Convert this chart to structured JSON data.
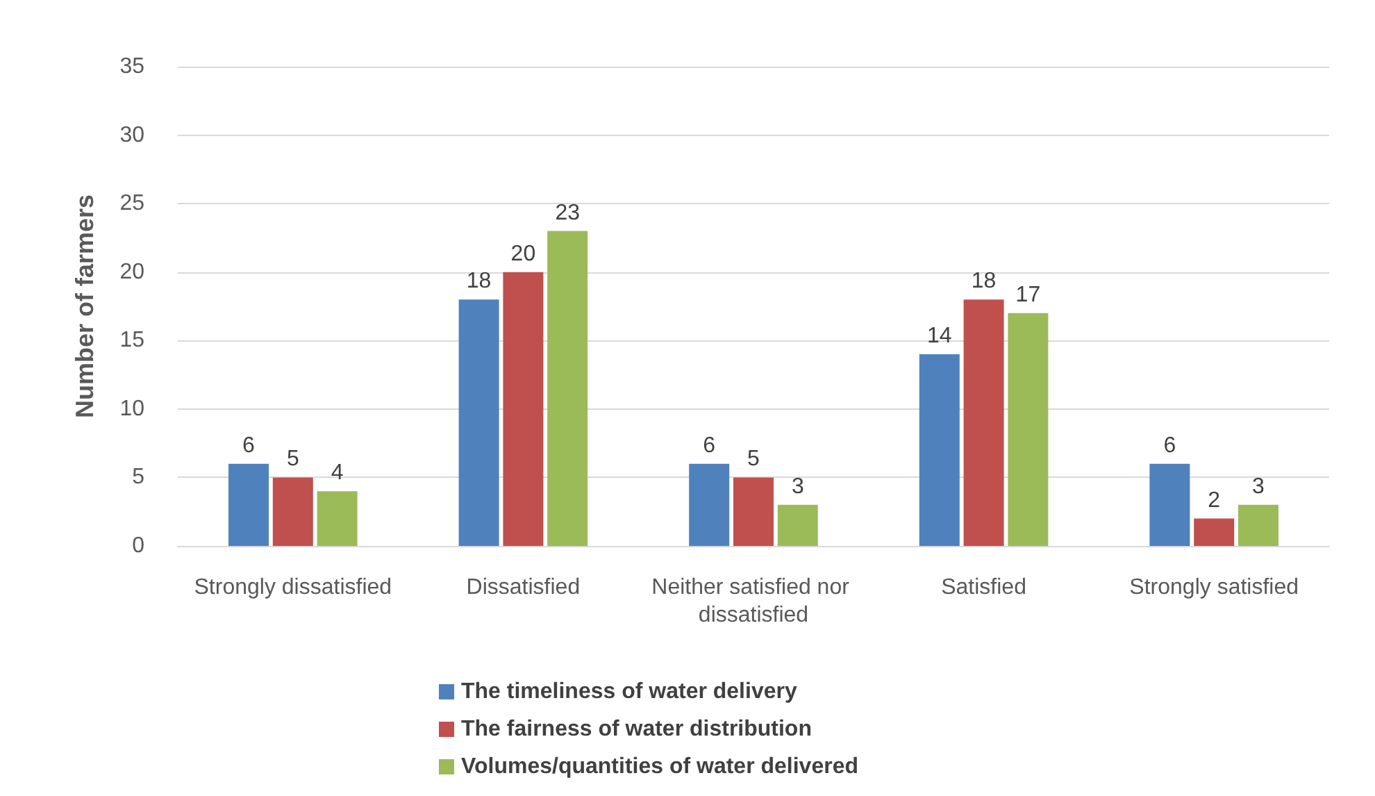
{
  "chart_data": {
    "type": "bar",
    "ylabel": "Number of farmers",
    "categories": [
      "Strongly dissatisfied",
      "Dissatisfied",
      "Neither satisfied nor dissatisfied",
      "Satisfied",
      "Strongly satisfied"
    ],
    "series": [
      {
        "name": "The timeliness of water delivery",
        "color": "#4f81bd",
        "values": [
          6,
          18,
          6,
          14,
          6
        ]
      },
      {
        "name": "The fairness of water distribution",
        "color": "#c0504d",
        "values": [
          5,
          20,
          5,
          18,
          2
        ]
      },
      {
        "name": "Volumes/quantities of water delivered",
        "color": "#9bbb59",
        "values": [
          4,
          23,
          3,
          17,
          3
        ]
      }
    ],
    "ylim": [
      0,
      35
    ],
    "yticks": [
      0,
      5,
      10,
      15,
      20,
      25,
      30,
      35
    ],
    "grid": "y",
    "legend": "bottom",
    "data_labels": true
  }
}
